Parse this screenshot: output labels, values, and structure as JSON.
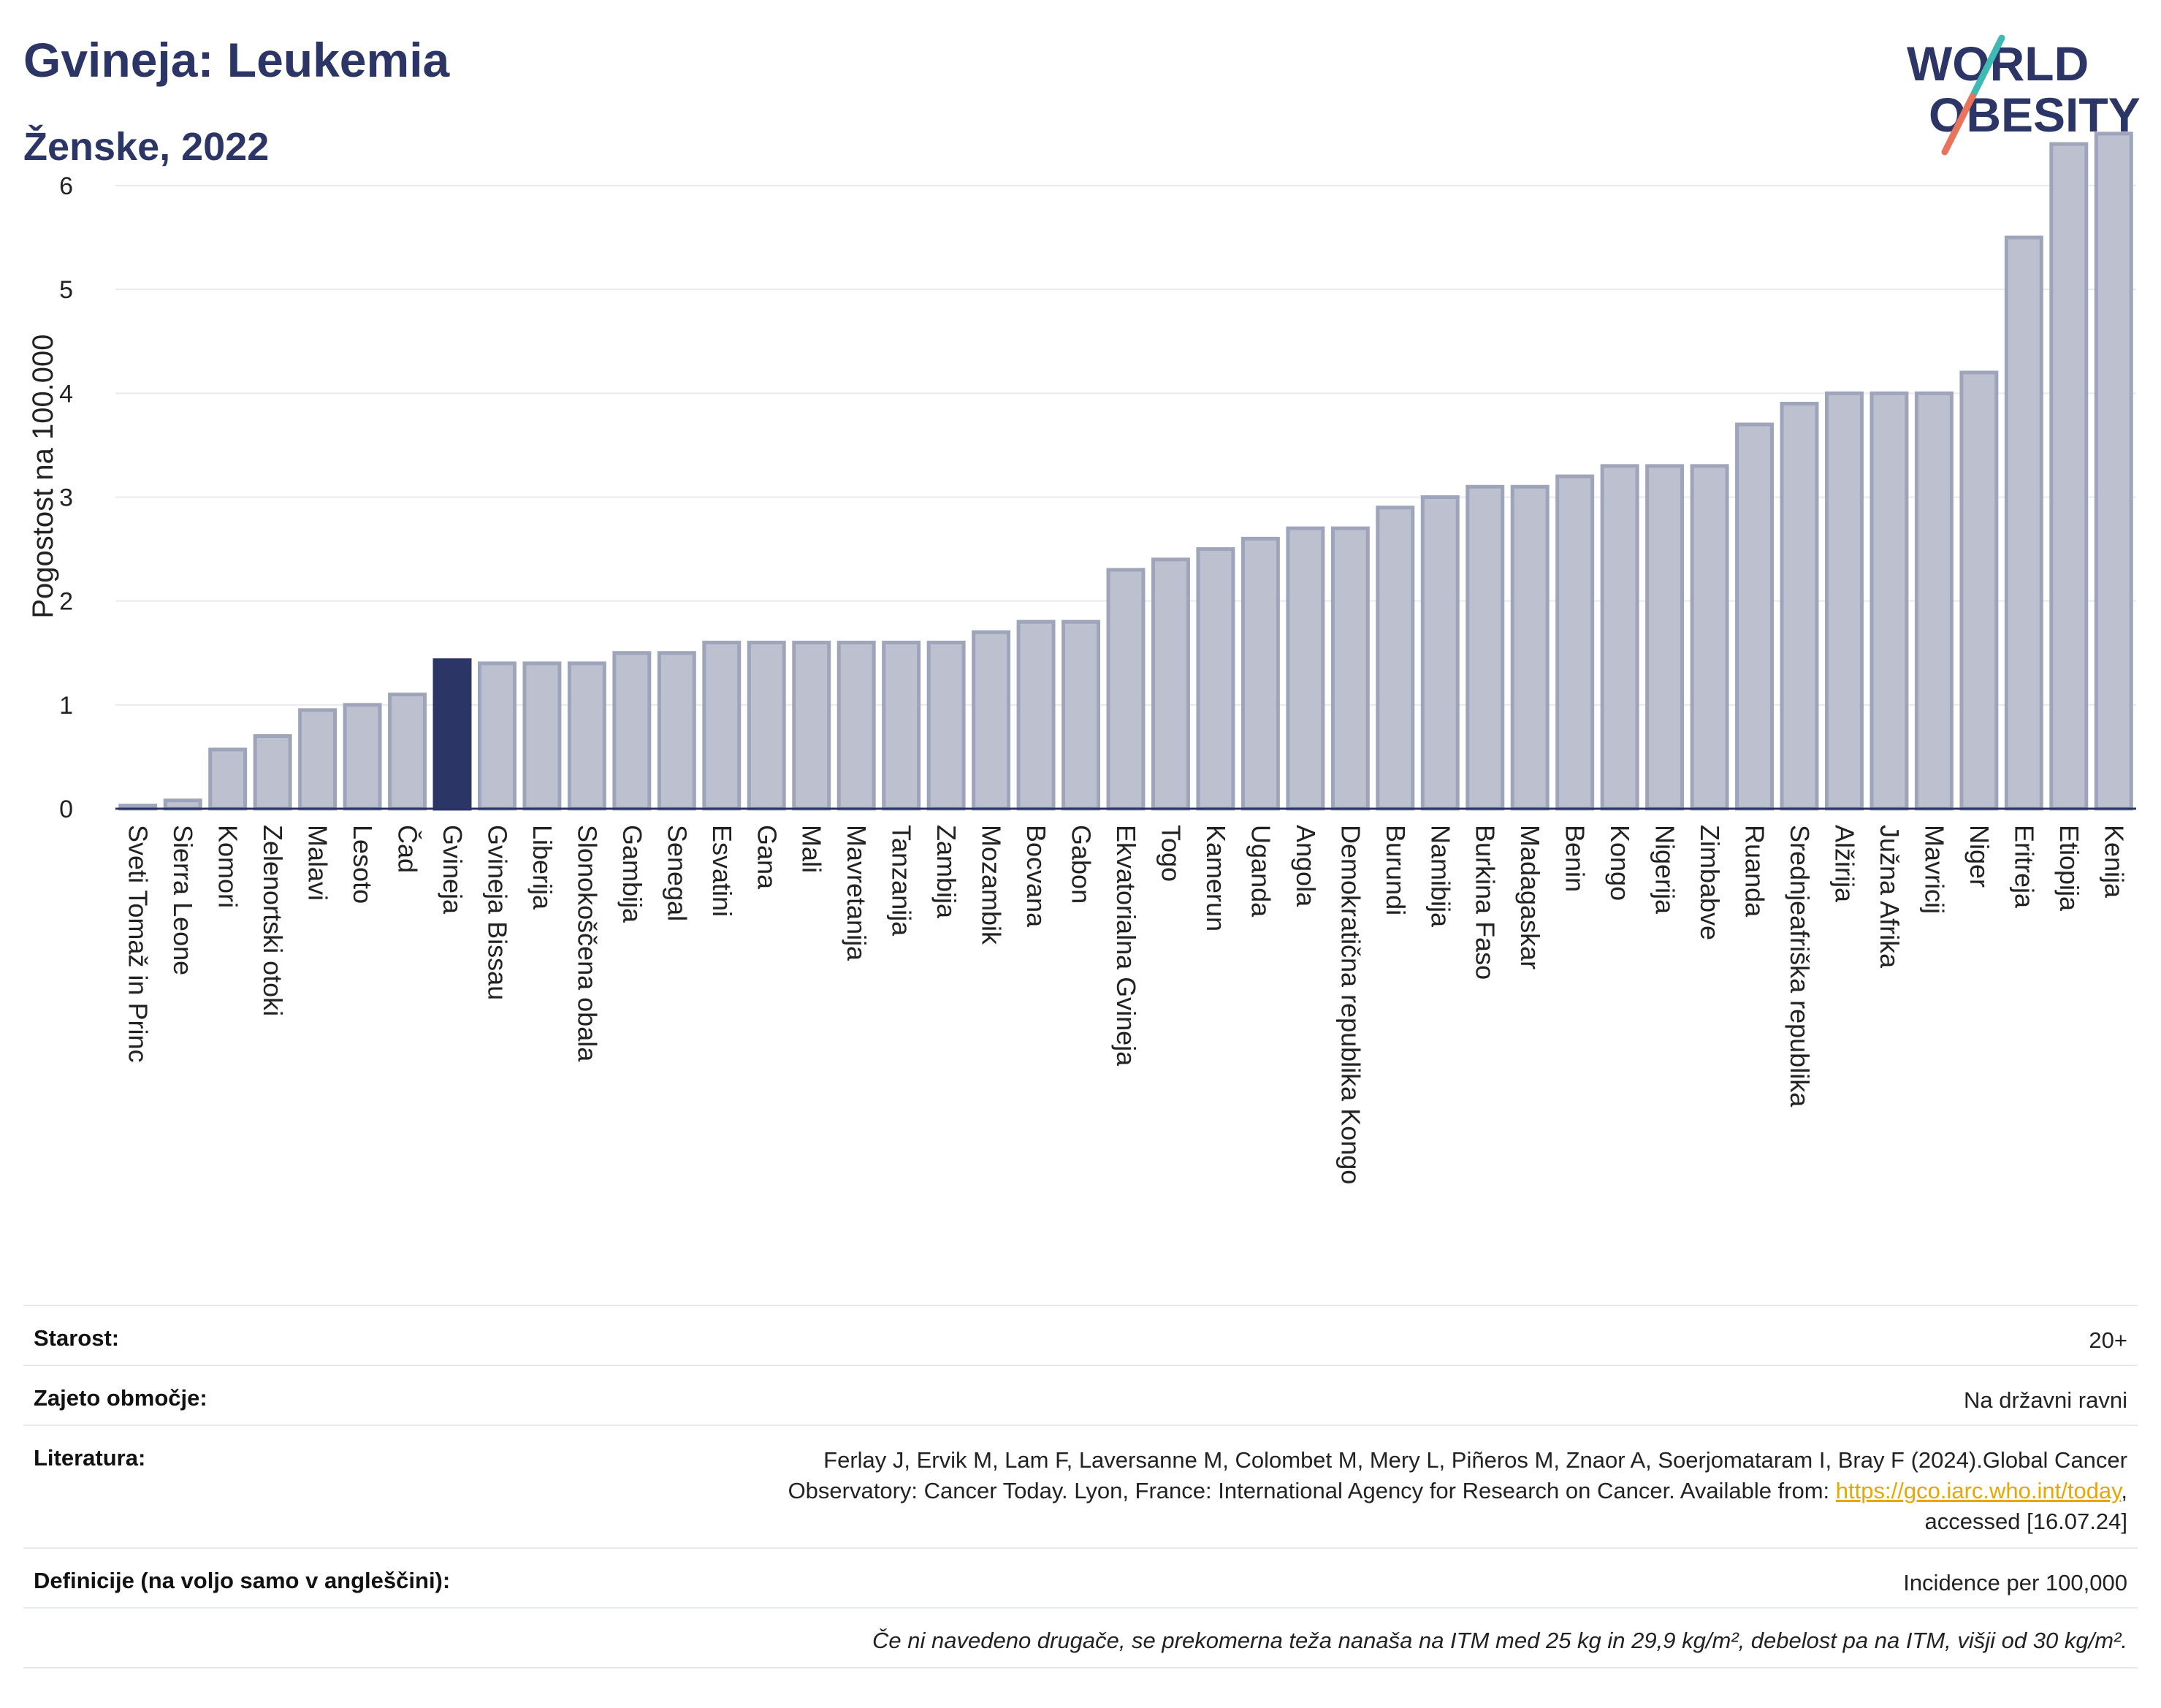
{
  "header": {
    "title": "Gvineja: Leukemia",
    "subtitle": "Ženske, 2022"
  },
  "logo": {
    "line1": "WORLD",
    "line2": "OBESITY"
  },
  "colors": {
    "bar": "#bcc0cf",
    "bar_stroke": "#9ea4b9",
    "highlight": "#2b3566",
    "title": "#2b3566",
    "logo_teal": "#3fb9b3",
    "logo_coral": "#e8745e"
  },
  "chart_data": {
    "type": "bar",
    "ylabel": "Pogostost na 100.000",
    "ylim": [
      0,
      6.6
    ],
    "yticks": [
      0,
      1,
      2,
      3,
      4,
      5,
      6
    ],
    "grid": true,
    "highlight": "Gvineja",
    "categories": [
      "Sveti Tomaž in Princ",
      "Sierra Leone",
      "Komori",
      "Zelenortski otoki",
      "Malavi",
      "Lesoto",
      "Čad",
      "Gvineja",
      "Gvineja Bissau",
      "Liberija",
      "Slonokoščena obala",
      "Gambija",
      "Senegal",
      "Esvatini",
      "Gana",
      "Mali",
      "Mavretanija",
      "Tanzanija",
      "Zambija",
      "Mozambik",
      "Bocvana",
      "Gabon",
      "Ekvatorialna Gvineja",
      "Togo",
      "Kamerun",
      "Uganda",
      "Angola",
      "Demokratična republika Kongo",
      "Burundi",
      "Namibija",
      "Burkina Faso",
      "Madagaskar",
      "Benin",
      "Kongo",
      "Nigerija",
      "Zimbabve",
      "Ruanda",
      "Srednjeafriška republika",
      "Alžirija",
      "Južna Afrika",
      "Mavricij",
      "Niger",
      "Eritreja",
      "Etiopija",
      "Kenija"
    ],
    "values": [
      0.03,
      0.08,
      0.57,
      0.7,
      0.95,
      1.0,
      1.1,
      1.43,
      1.4,
      1.4,
      1.4,
      1.5,
      1.5,
      1.6,
      1.6,
      1.6,
      1.6,
      1.6,
      1.6,
      1.7,
      1.8,
      1.8,
      2.3,
      2.4,
      2.5,
      2.6,
      2.7,
      2.7,
      2.9,
      3.0,
      3.1,
      3.1,
      3.2,
      3.3,
      3.3,
      3.3,
      3.7,
      3.9,
      4.0,
      4.0,
      4.0,
      4.2,
      5.5,
      6.4,
      6.5
    ]
  },
  "info": {
    "age_label": "Starost:",
    "age_value": "20+",
    "coverage_label": "Zajeto območje:",
    "coverage_value": "Na državni ravni",
    "literature_label": "Literatura:",
    "literature_line1": "Ferlay J, Ervik M, Lam F, Laversanne M, Colombet M, Mery L, Piñeros M, Znaor A, Soerjomataram I, Bray F (2024).Global Cancer",
    "literature_line2": "Observatory: Cancer Today. Lyon, France: International Agency for Research on Cancer. Available from: ",
    "literature_link": "https://gco.iarc.who.int/today",
    "literature_line2_end": ",",
    "literature_line3": "accessed [16.07.24]",
    "definitions_label": "Definicije (na voljo samo v angleščini):",
    "definitions_value": "Incidence per 100,000",
    "footnote": "Če ni navedeno drugače, se prekomerna teža nanaša na ITM med 25 kg in 29,9 kg/m², debelost pa na ITM, višji od 30 kg/m²."
  }
}
